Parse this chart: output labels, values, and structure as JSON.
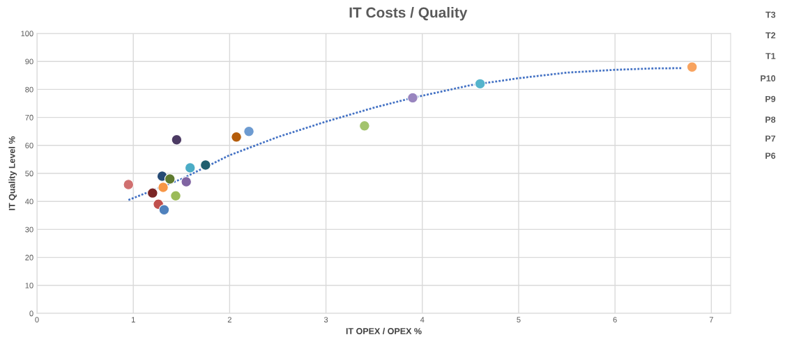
{
  "chart_data": [
    {
      "type": "scatter",
      "title": "IT Costs / Quality",
      "xlabel": "IT OPEX / OPEX %",
      "ylabel": "IT Quality Level %",
      "xlim": [
        0,
        7.2
      ],
      "xticks": [
        0,
        1,
        2,
        3,
        4,
        5,
        6,
        7
      ],
      "ylim": [
        0,
        100
      ],
      "yticks": [
        0,
        10,
        20,
        30,
        40,
        50,
        60,
        70,
        80,
        90,
        100
      ],
      "grid": true,
      "legend": false,
      "series": [
        {
          "type": "scatter",
          "marker": "circle",
          "x": [
            0.95,
            1.2,
            1.26,
            1.3,
            1.31,
            1.32,
            1.38,
            1.44,
            1.45,
            1.55,
            1.59,
            1.75,
            2.07,
            2.2,
            3.4,
            3.9,
            4.6,
            6.8
          ],
          "values": [
            46,
            43,
            39,
            49,
            45,
            37,
            48,
            42,
            62,
            47,
            52,
            53,
            63,
            65,
            67,
            77,
            82,
            88
          ],
          "colors": [
            "#d07070",
            "#7b2525",
            "#c0504d",
            "#254a74",
            "#f79646",
            "#4f81bd",
            "#5e7a2f",
            "#9bbb59",
            "#4b3a63",
            "#8064a2",
            "#4bacc6",
            "#215f6f",
            "#b45c0a",
            "#6d9bd1",
            "#a3c46d",
            "#9985bf",
            "#55b4cc",
            "#f8a35f"
          ]
        },
        {
          "type": "line",
          "marker": "none",
          "line_style": "dotted",
          "color": "#4472c4",
          "x": [
            0.95,
            1.5,
            2,
            2.5,
            3,
            3.5,
            3.9,
            4.5,
            5,
            5.5,
            6,
            6.4,
            6.7
          ],
          "values": [
            40.5,
            48,
            56.5,
            63,
            68.5,
            73.5,
            77,
            81.5,
            84,
            86,
            87,
            87.5,
            87.6
          ]
        }
      ]
    },
    {
      "type": "other",
      "annotations": [
        "T3",
        "T2",
        "T1",
        "P10",
        "P9",
        "P8",
        "P7",
        "P6"
      ]
    }
  ]
}
